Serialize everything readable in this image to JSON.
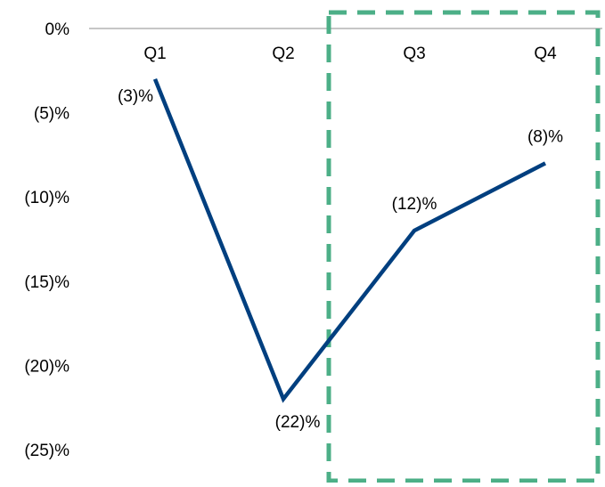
{
  "colors": {
    "line": "#003f7f",
    "axis": "#b3b3b3",
    "highlight_box": "#4caf87",
    "text": "#000000"
  },
  "chart_data": {
    "type": "line",
    "categories": [
      "Q1",
      "Q2",
      "Q3",
      "Q4"
    ],
    "series": [
      {
        "values": [
          -3,
          -22,
          -12,
          -8
        ],
        "labels": [
          "(3)%",
          "(22)%",
          "(12)%",
          "(8)%"
        ]
      }
    ],
    "ylim": [
      -25,
      0
    ],
    "yticks": [
      0,
      -5,
      -10,
      -15,
      -20,
      -25
    ],
    "ytick_labels": [
      "0%",
      "(5)%",
      "(10)%",
      "(15)%",
      "(20)%",
      "(25)%"
    ],
    "x_axis_position": "top",
    "grid": false,
    "legend": "none",
    "highlight": {
      "style": "dashed-box",
      "covers_categories": [
        "Q3",
        "Q4"
      ]
    }
  }
}
